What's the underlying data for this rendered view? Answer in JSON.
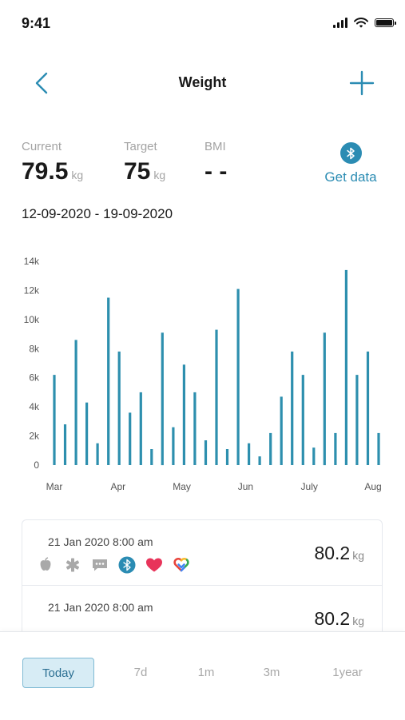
{
  "status_bar": {
    "time": "9:41"
  },
  "header": {
    "title": "Weight",
    "back_icon": "chevron-left-icon",
    "add_icon": "plus-icon"
  },
  "stats": {
    "current": {
      "label": "Current",
      "value": "79.5",
      "unit": "kg"
    },
    "target": {
      "label": "Target",
      "value": "75",
      "unit": "kg"
    },
    "bmi": {
      "label": "BMI",
      "value": "- -"
    },
    "get_data": {
      "label": "Get data",
      "icon": "bluetooth-icon"
    }
  },
  "date_range": "12-09-2020 - 19-09-2020",
  "colors": {
    "accent": "#2b8cb3",
    "bar": "#2d8fae",
    "heart": "#e8345a",
    "muted": "#a3a3a3"
  },
  "chart_data": {
    "type": "bar",
    "ylim": [
      0,
      14000
    ],
    "ytick_values": [
      0,
      2000,
      4000,
      6000,
      8000,
      10000,
      12000,
      14000
    ],
    "ytick_labels": [
      "0",
      "2k",
      "4k",
      "6k",
      "8k",
      "10k",
      "12k",
      "14k"
    ],
    "xtick_labels": [
      "Mar",
      "Apr",
      "May",
      "Jun",
      "July",
      "Aug"
    ],
    "values": [
      6200,
      2800,
      8600,
      4300,
      1500,
      11500,
      7800,
      3600,
      5000,
      1100,
      9100,
      2600,
      6900,
      5000,
      1700,
      9300,
      1100,
      12100,
      1500,
      600,
      2200,
      4700,
      7800,
      6200,
      1200,
      9100,
      2200,
      13400,
      6200,
      7800,
      2200
    ]
  },
  "entries": [
    {
      "date": "21 Jan 2020 8:00 am",
      "value": "80.2",
      "unit": "kg",
      "source_icons": [
        "apple-icon",
        "medical-icon",
        "chat-icon",
        "bluetooth-icon",
        "heart-icon",
        "google-fit-icon"
      ]
    },
    {
      "date": "21 Jan 2020 8:00 am",
      "value": "80.2",
      "unit": "kg",
      "source_icons": []
    }
  ],
  "tabs": [
    {
      "label": "Today",
      "active": true
    },
    {
      "label": "7d",
      "active": false
    },
    {
      "label": "1m",
      "active": false
    },
    {
      "label": "3m",
      "active": false
    },
    {
      "label": "1year",
      "active": false
    }
  ]
}
